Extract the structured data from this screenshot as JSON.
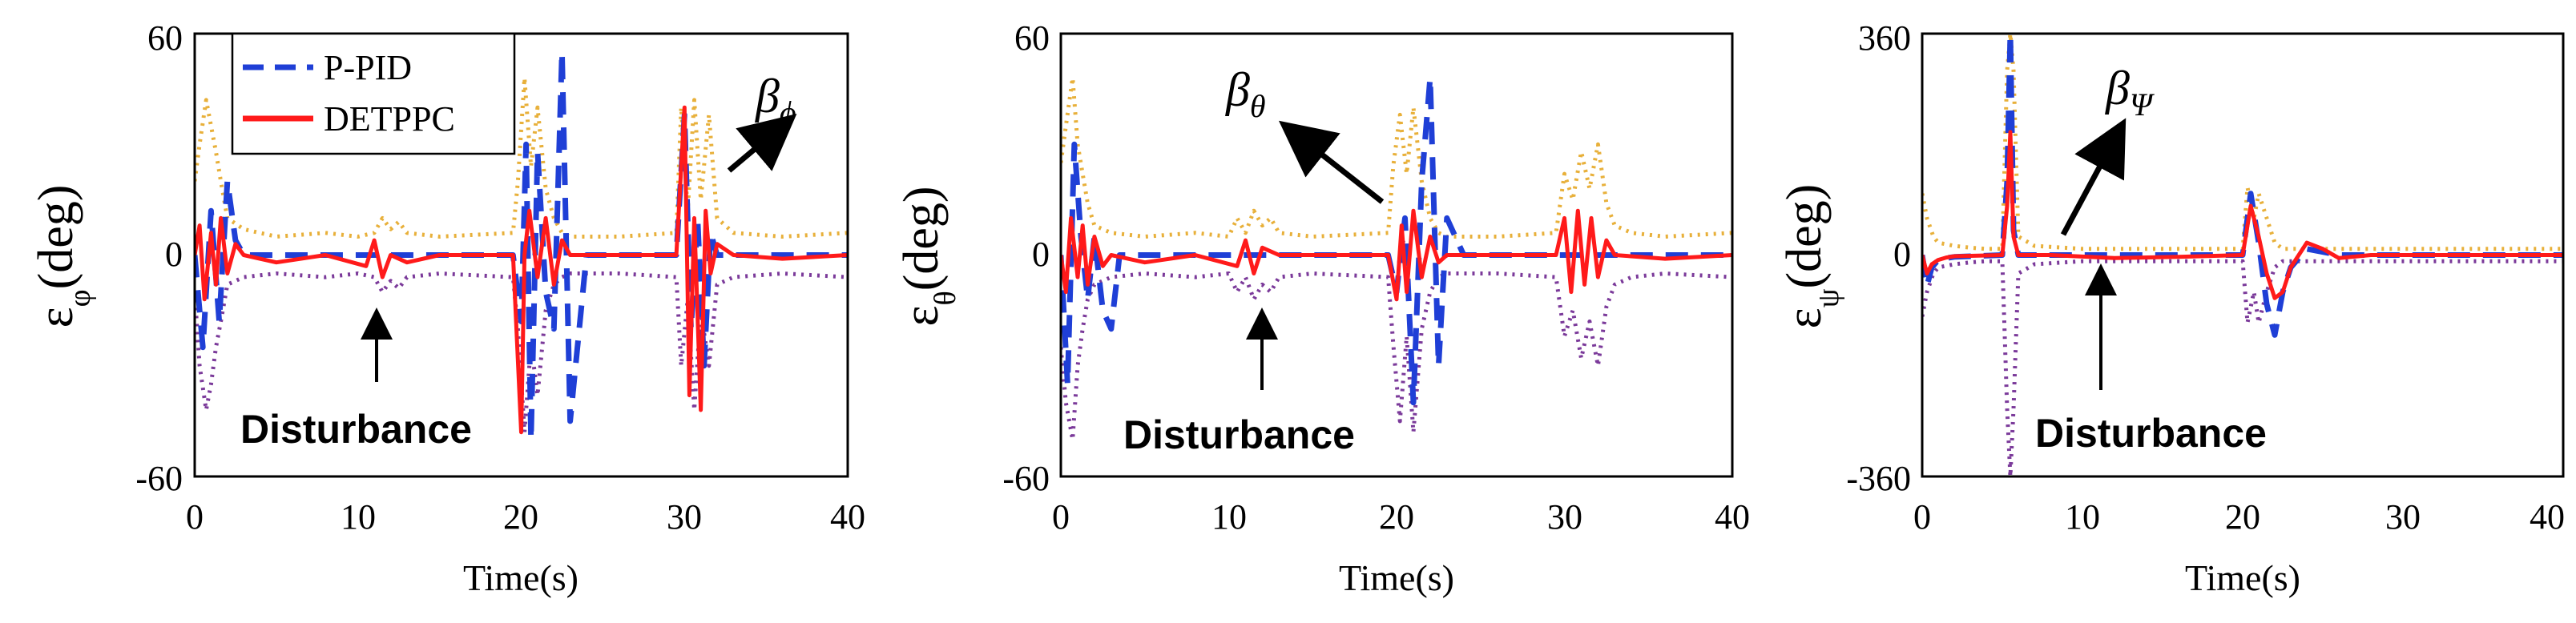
{
  "colors": {
    "ppid": "#1f3fd6",
    "detppc": "#ff1a1a",
    "upper_bound": "#e8b03a",
    "lower_bound": "#7b3a9a"
  },
  "legend": {
    "entries": [
      "P-PID",
      "DETPPC"
    ]
  },
  "chart_data": [
    {
      "type": "line",
      "title": "",
      "xlabel": "Time(s)",
      "ylabel": "ε",
      "ylabel_subscript": "φ",
      "ylabel_unit": "(deg)",
      "xlim": [
        0,
        40
      ],
      "ylim": [
        -60,
        60
      ],
      "xticks": [
        "0",
        "10",
        "20",
        "30",
        "40"
      ],
      "yticks": [
        "-60",
        "0",
        "60"
      ],
      "annotation_beta": "β",
      "annotation_beta_sub": "ϕ",
      "annotation_disturbance": "Disturbance",
      "series": [
        {
          "name": "P-PID",
          "x": [
            0,
            0.5,
            1,
            1.5,
            2,
            2.5,
            3,
            5,
            8,
            11,
            12,
            15,
            19.5,
            20,
            20.3,
            20.6,
            21,
            21.5,
            22,
            22.5,
            23,
            24,
            26,
            29.5,
            30,
            30.4,
            30.8,
            31.2,
            31.6,
            32,
            33,
            36,
            40
          ],
          "y": [
            0,
            -25,
            12,
            -18,
            20,
            4,
            0,
            0,
            0,
            0,
            0,
            0,
            0,
            -18,
            30,
            -50,
            28,
            -10,
            -20,
            55,
            -45,
            0,
            0,
            0,
            38,
            -20,
            10,
            -30,
            6,
            0,
            0,
            0,
            0
          ]
        },
        {
          "name": "DETPPC",
          "x": [
            0,
            0.3,
            0.6,
            1,
            1.3,
            1.6,
            2,
            2.5,
            3,
            5,
            8,
            10.5,
            11,
            11.5,
            12,
            13,
            15,
            19.5,
            20,
            20.2,
            20.5,
            21,
            21.5,
            22,
            22.5,
            23,
            26,
            29.5,
            30,
            30.3,
            30.6,
            31,
            31.3,
            31.6,
            32,
            33,
            36,
            40
          ],
          "y": [
            0,
            8,
            -12,
            6,
            -8,
            10,
            -5,
            3,
            0,
            -2,
            0,
            -3,
            4,
            -6,
            0,
            -2,
            0,
            0,
            -48,
            0,
            12,
            -6,
            10,
            -8,
            4,
            0,
            0,
            0,
            40,
            -38,
            10,
            -42,
            12,
            -5,
            3,
            0,
            -1,
            0
          ]
        },
        {
          "name": "upper bound",
          "x": [
            0,
            0.3,
            0.7,
            1,
            1.3,
            1.6,
            2,
            3,
            5,
            8,
            10,
            11,
            11.5,
            12,
            12.5,
            13,
            15,
            19.5,
            19.8,
            20.2,
            20.6,
            21,
            21.5,
            22,
            22.5,
            23,
            26,
            29.5,
            29.8,
            30.2,
            30.6,
            31,
            31.5,
            32,
            33,
            36,
            40
          ],
          "y": [
            20,
            30,
            42,
            35,
            28,
            20,
            10,
            7,
            5,
            6,
            5,
            6,
            10,
            7,
            9,
            6,
            5,
            6,
            20,
            48,
            24,
            40,
            18,
            10,
            6,
            5,
            5,
            6,
            40,
            12,
            42,
            15,
            38,
            10,
            6,
            5,
            6
          ]
        },
        {
          "name": "lower bound",
          "x": [
            0,
            0.3,
            0.7,
            1,
            1.3,
            1.6,
            2,
            3,
            5,
            8,
            10,
            11,
            11.5,
            12,
            12.5,
            13,
            15,
            19.5,
            19.8,
            20.2,
            20.6,
            21,
            21.5,
            22,
            22.5,
            23,
            26,
            29.5,
            29.8,
            30.2,
            30.6,
            31,
            31.5,
            32,
            33,
            36,
            40
          ],
          "y": [
            -10,
            -30,
            -42,
            -35,
            -25,
            -18,
            -8,
            -6,
            -5,
            -6,
            -5,
            -6,
            -10,
            -7,
            -9,
            -6,
            -5,
            -6,
            -20,
            -48,
            -24,
            -38,
            -15,
            -8,
            -6,
            -5,
            -5,
            -6,
            -30,
            -12,
            -42,
            -15,
            -30,
            -8,
            -6,
            -5,
            -6
          ]
        }
      ]
    },
    {
      "type": "line",
      "title": "",
      "xlabel": "Time(s)",
      "ylabel": "ε",
      "ylabel_subscript": "θ",
      "ylabel_unit": "(deg)",
      "xlim": [
        0,
        40
      ],
      "ylim": [
        -60,
        60
      ],
      "xticks": [
        "0",
        "10",
        "20",
        "30",
        "40"
      ],
      "yticks": [
        "-60",
        "0",
        "60"
      ],
      "annotation_beta": "β",
      "annotation_beta_sub": "θ",
      "annotation_disturbance": "Disturbance",
      "series": [
        {
          "name": "P-PID",
          "x": [
            0,
            0.4,
            0.8,
            1.2,
            1.6,
            2,
            2.5,
            3,
            3.5,
            5,
            8,
            11,
            15,
            19.5,
            20,
            20.5,
            21,
            21.5,
            22,
            22.5,
            23,
            24,
            26,
            40
          ],
          "y": [
            0,
            -35,
            30,
            5,
            -12,
            5,
            -15,
            -20,
            0,
            0,
            0,
            0,
            0,
            0,
            -10,
            10,
            -40,
            20,
            48,
            -30,
            10,
            0,
            0,
            0
          ]
        },
        {
          "name": "DETPPC",
          "x": [
            0,
            0.3,
            0.6,
            1,
            1.3,
            1.6,
            2,
            2.5,
            3,
            5,
            8,
            10.5,
            11,
            11.5,
            12,
            13,
            15,
            19.5,
            20,
            20.3,
            20.6,
            21,
            21.5,
            22,
            22.5,
            23,
            26,
            29.5,
            30,
            30.4,
            30.8,
            31.2,
            31.6,
            32,
            32.5,
            33,
            36,
            40
          ],
          "y": [
            0,
            -10,
            10,
            -6,
            8,
            -8,
            5,
            -3,
            0,
            -2,
            0,
            -3,
            4,
            -5,
            2,
            0,
            0,
            0,
            -12,
            8,
            -10,
            12,
            -6,
            5,
            -2,
            0,
            0,
            0,
            10,
            -10,
            12,
            -8,
            10,
            -6,
            4,
            0,
            -1,
            0
          ]
        },
        {
          "name": "upper bound",
          "x": [
            0,
            0.3,
            0.7,
            1,
            1.3,
            1.6,
            2,
            3,
            5,
            8,
            10,
            10.5,
            11,
            11.5,
            12,
            12.5,
            13,
            15,
            19.5,
            19.8,
            20.2,
            20.6,
            21,
            21.5,
            22,
            22.5,
            23,
            26,
            29.5,
            30,
            30.5,
            31,
            31.5,
            32,
            32.5,
            33,
            34,
            36,
            40
          ],
          "y": [
            25,
            35,
            48,
            30,
            22,
            14,
            8,
            6,
            5,
            6,
            5,
            10,
            6,
            12,
            8,
            10,
            6,
            5,
            6,
            24,
            38,
            22,
            40,
            20,
            10,
            6,
            5,
            5,
            6,
            22,
            15,
            28,
            18,
            30,
            14,
            8,
            6,
            5,
            6
          ]
        },
        {
          "name": "lower bound",
          "x": [
            0,
            0.3,
            0.7,
            1,
            1.3,
            1.6,
            2,
            3,
            5,
            8,
            10,
            10.5,
            11,
            11.5,
            12,
            12.5,
            13,
            15,
            19.5,
            19.8,
            20.2,
            20.6,
            21,
            21.5,
            22,
            22.5,
            23,
            26,
            29.5,
            30,
            30.5,
            31,
            31.5,
            32,
            32.5,
            33,
            34,
            36,
            40
          ],
          "y": [
            -25,
            -40,
            -50,
            -30,
            -20,
            -12,
            -8,
            -6,
            -5,
            -6,
            -5,
            -10,
            -6,
            -12,
            -8,
            -10,
            -6,
            -5,
            -6,
            -24,
            -45,
            -22,
            -48,
            -20,
            -10,
            -6,
            -5,
            -5,
            -6,
            -22,
            -15,
            -28,
            -18,
            -30,
            -14,
            -8,
            -6,
            -5,
            -6
          ]
        }
      ]
    },
    {
      "type": "line",
      "title": "",
      "xlabel": "Time(s)",
      "ylabel": "ε",
      "ylabel_subscript": "ψ",
      "ylabel_unit": "(deg)",
      "xlim": [
        0,
        40
      ],
      "ylim": [
        -360,
        360
      ],
      "xticks": [
        "0",
        "10",
        "20",
        "30",
        "40"
      ],
      "yticks": [
        "-360",
        "0",
        "360"
      ],
      "annotation_beta": "β",
      "annotation_beta_sub": "Ψ",
      "annotation_disturbance": "Disturbance",
      "series": [
        {
          "name": "P-PID",
          "x": [
            0,
            0.3,
            0.6,
            1,
            1.5,
            2,
            5,
            5.3,
            5.5,
            5.7,
            6,
            8,
            12,
            16,
            20,
            20.5,
            21,
            21.5,
            22,
            22.5,
            23,
            24,
            26,
            40
          ],
          "y": [
            0,
            -50,
            -20,
            -8,
            -5,
            -3,
            0,
            120,
            360,
            40,
            0,
            0,
            0,
            0,
            0,
            100,
            20,
            -80,
            -130,
            -60,
            -20,
            10,
            0,
            0
          ]
        },
        {
          "name": "DETPPC",
          "x": [
            0,
            0.3,
            0.6,
            1,
            1.5,
            2,
            5,
            5.3,
            5.5,
            5.7,
            6,
            8,
            12,
            16,
            20,
            20.5,
            21,
            21.5,
            22,
            22.5,
            23,
            24,
            25,
            26,
            28,
            40
          ],
          "y": [
            0,
            -30,
            -15,
            -8,
            -4,
            -2,
            0,
            80,
            200,
            30,
            0,
            0,
            -5,
            -3,
            0,
            80,
            30,
            -30,
            -70,
            -60,
            -20,
            20,
            10,
            -5,
            0,
            0
          ]
        },
        {
          "name": "upper bound",
          "x": [
            0,
            0.3,
            0.7,
            1,
            2,
            3,
            4,
            5,
            5.3,
            5.5,
            5.7,
            6,
            7,
            10,
            15,
            20,
            20.3,
            20.7,
            21,
            21.5,
            22,
            22.5,
            23,
            24,
            26,
            40
          ],
          "y": [
            100,
            60,
            30,
            20,
            15,
            12,
            10,
            10,
            300,
            360,
            300,
            30,
            15,
            10,
            10,
            10,
            110,
            60,
            100,
            60,
            20,
            10,
            10,
            10,
            10,
            10
          ]
        },
        {
          "name": "lower bound",
          "x": [
            0,
            0.3,
            0.7,
            1,
            2,
            3,
            4,
            5,
            5.3,
            5.5,
            5.7,
            6,
            7,
            10,
            15,
            20,
            20.3,
            20.7,
            21,
            21.5,
            22,
            22.5,
            23,
            24,
            26,
            40
          ],
          "y": [
            -100,
            -60,
            -30,
            -20,
            -15,
            -12,
            -10,
            -10,
            -250,
            -360,
            -250,
            -30,
            -15,
            -10,
            -10,
            -10,
            -110,
            -60,
            -110,
            -60,
            -20,
            -10,
            -10,
            -10,
            -10,
            -10
          ]
        }
      ]
    }
  ]
}
